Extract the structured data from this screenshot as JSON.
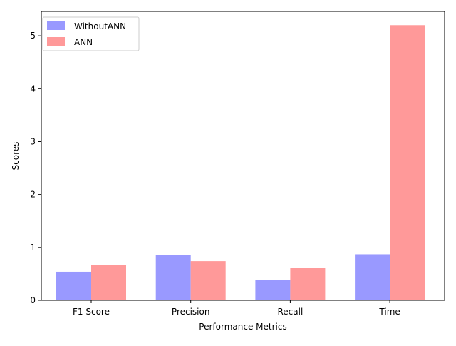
{
  "chart_data": {
    "type": "bar",
    "title": "",
    "xlabel": "Performance Metrics",
    "ylabel": "Scores",
    "categories": [
      "F1 Score",
      "Precision",
      "Recall",
      "Time"
    ],
    "series": [
      {
        "name": "WithoutANN",
        "values": [
          0.54,
          0.85,
          0.39,
          0.87
        ],
        "color": "#9999ff"
      },
      {
        "name": "ANN",
        "values": [
          0.67,
          0.74,
          0.62,
          5.2
        ],
        "color": "#ff9999"
      }
    ],
    "ylim": [
      0,
      5.46
    ],
    "yticks": [
      "0",
      "1",
      "2",
      "3",
      "4",
      "5"
    ],
    "grid": false,
    "legend": "top-left"
  }
}
